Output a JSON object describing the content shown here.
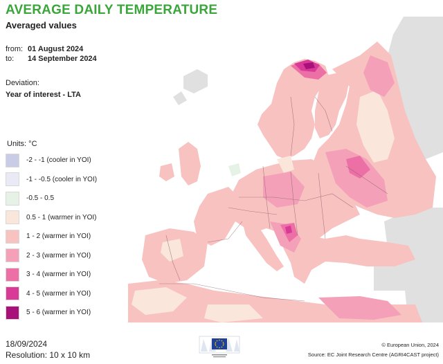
{
  "header": {
    "title": "AVERAGE DAILY TEMPERATURE",
    "subtitle": "Averaged values"
  },
  "period": {
    "from_label": "from:",
    "from_value": "01 August 2024",
    "to_label": "to:",
    "to_value": "14 September 2024"
  },
  "deviation": {
    "label": "Deviation:",
    "value": "Year of interest - LTA"
  },
  "legend": {
    "units": "Units: °C",
    "items": [
      {
        "label": "-2 - -1 (cooler in YOI)",
        "color": "#c9cce6"
      },
      {
        "label": "-1 - -0.5 (cooler in YOI)",
        "color": "#e9eaf5"
      },
      {
        "label": "-0.5 - 0.5",
        "color": "#e6f2e6"
      },
      {
        "label": "0.5 - 1 (warmer in YOI)",
        "color": "#fbe6dc"
      },
      {
        "label": "1 - 2 (warmer in YOI)",
        "color": "#f7c2c0"
      },
      {
        "label": "2 - 3 (warmer in YOI)",
        "color": "#f3a0b8"
      },
      {
        "label": "3 - 4 (warmer in YOI)",
        "color": "#ec6fa6"
      },
      {
        "label": "4 - 5 (warmer in YOI)",
        "color": "#d93a98"
      },
      {
        "label": "5 - 6 (warmer in YOI)",
        "color": "#a8117a"
      }
    ]
  },
  "footer": {
    "date": "18/09/2024",
    "resolution": "Resolution: 10 x 10 km",
    "copyright": "© European Union, 2024",
    "source": "Source: EC Joint Research Centre (AGRI4CAST project)"
  },
  "map": {
    "land_colors": {
      "outside": "#e0e0e0",
      "water": "#ffffff",
      "border": "#8a5a6a"
    }
  }
}
